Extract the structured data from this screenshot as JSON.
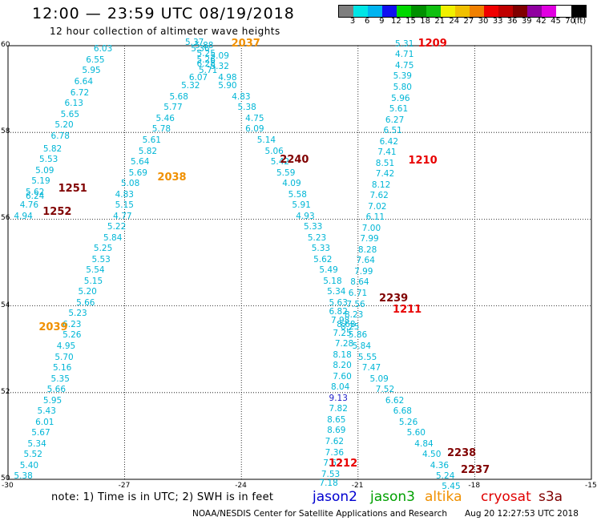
{
  "header": {
    "title": "12:00 — 23:59 UTC 08/19/2018",
    "subtitle": "12 hour collection of altimeter wave heights"
  },
  "colorbar": {
    "colors": [
      "#7f7f7f",
      "#00e6e6",
      "#00b4f0",
      "#1010f0",
      "#00d800",
      "#009000",
      "#10c010",
      "#f0f000",
      "#f0c000",
      "#f08000",
      "#f00000",
      "#c00000",
      "#800000",
      "#9000a0",
      "#e000e0",
      "#ffffff",
      "#000000"
    ],
    "labels": [
      "3",
      "6",
      "9",
      "12",
      "15",
      "18",
      "21",
      "24",
      "27",
      "30",
      "33",
      "36",
      "39",
      "42",
      "45",
      "70",
      "(ft)"
    ]
  },
  "axes": {
    "lat_labels": [
      "60",
      "58",
      "56",
      "54",
      "52",
      "50"
    ],
    "lon_labels": [
      "-30",
      "-27",
      "-24",
      "-21",
      "-18",
      "-15"
    ]
  },
  "chart_data": {
    "type": "scatter",
    "xlim": [
      -30,
      -15
    ],
    "ylim": [
      50,
      60
    ],
    "grid": true,
    "points": [
      [
        -27.55,
        59.9,
        "6.03"
      ],
      [
        -27.75,
        59.65,
        "6.55"
      ],
      [
        -27.85,
        59.4,
        "5.95"
      ],
      [
        -28.05,
        59.15,
        "6.64"
      ],
      [
        -28.15,
        58.9,
        "6.72"
      ],
      [
        -28.3,
        58.65,
        "6.13"
      ],
      [
        -28.4,
        58.4,
        "5.65"
      ],
      [
        -28.55,
        58.15,
        "5.20"
      ],
      [
        -28.65,
        57.9,
        "6.78"
      ],
      [
        -28.85,
        57.6,
        "5.82"
      ],
      [
        -28.95,
        57.35,
        "5.53"
      ],
      [
        -29.05,
        57.1,
        "5.09"
      ],
      [
        -29.15,
        56.85,
        "5.19"
      ],
      [
        -29.3,
        56.6,
        "5.62"
      ],
      [
        -29.3,
        56.5,
        "6.24"
      ],
      [
        -29.45,
        56.3,
        "4.76"
      ],
      [
        -29.6,
        56.05,
        "4.94"
      ],
      [
        -25.2,
        60.05,
        "5.37"
      ],
      [
        -24.95,
        59.98,
        "5.88"
      ],
      [
        -25.05,
        59.9,
        "5.36"
      ],
      [
        -24.9,
        59.8,
        "5.25"
      ],
      [
        -24.9,
        59.65,
        "5.26"
      ],
      [
        -24.9,
        59.55,
        "6.28"
      ],
      [
        -24.85,
        59.4,
        "5.71"
      ],
      [
        -25.1,
        59.25,
        "6.07"
      ],
      [
        -25.3,
        59.05,
        "5.32"
      ],
      [
        -25.6,
        58.8,
        "5.68"
      ],
      [
        -25.75,
        58.55,
        "5.77"
      ],
      [
        -25.95,
        58.3,
        "5.46"
      ],
      [
        -26.05,
        58.05,
        "5.78"
      ],
      [
        -26.3,
        57.8,
        "5.61"
      ],
      [
        -26.4,
        57.55,
        "5.82"
      ],
      [
        -26.6,
        57.3,
        "5.64"
      ],
      [
        -26.65,
        57.05,
        "5.69"
      ],
      [
        -26.85,
        56.8,
        "5.08"
      ],
      [
        -27.0,
        56.55,
        "4.83"
      ],
      [
        -27.0,
        56.3,
        "5.15"
      ],
      [
        -27.05,
        56.05,
        "4.77"
      ],
      [
        -27.2,
        55.8,
        "5.22"
      ],
      [
        -27.3,
        55.55,
        "5.84"
      ],
      [
        -27.55,
        55.3,
        "5.25"
      ],
      [
        -27.6,
        55.05,
        "5.53"
      ],
      [
        -27.75,
        54.8,
        "5.54"
      ],
      [
        -27.8,
        54.55,
        "5.15"
      ],
      [
        -27.95,
        54.3,
        "5.20"
      ],
      [
        -28.0,
        54.05,
        "5.66"
      ],
      [
        -28.2,
        53.8,
        "5.23"
      ],
      [
        -28.35,
        53.55,
        "6.23"
      ],
      [
        -28.35,
        53.3,
        "5.26"
      ],
      [
        -28.5,
        53.05,
        "4.95"
      ],
      [
        -28.55,
        52.8,
        "5.70"
      ],
      [
        -28.6,
        52.55,
        "5.16"
      ],
      [
        -28.65,
        52.3,
        "5.35"
      ],
      [
        -28.75,
        52.05,
        "5.66"
      ],
      [
        -28.85,
        51.8,
        "5.95"
      ],
      [
        -29.0,
        51.55,
        "5.43"
      ],
      [
        -29.05,
        51.3,
        "6.01"
      ],
      [
        -29.15,
        51.05,
        "5.67"
      ],
      [
        -29.25,
        50.8,
        "5.34"
      ],
      [
        -29.35,
        50.55,
        "5.52"
      ],
      [
        -29.45,
        50.3,
        "5.40"
      ],
      [
        -29.6,
        50.05,
        "5.38"
      ],
      [
        -24.55,
        59.75,
        "5.09"
      ],
      [
        -24.55,
        59.5,
        "5.32"
      ],
      [
        -24.35,
        59.25,
        "4.98"
      ],
      [
        -24.35,
        59.05,
        "5.90"
      ],
      [
        -24.0,
        58.8,
        "4.83"
      ],
      [
        -23.85,
        58.55,
        "5.38"
      ],
      [
        -23.65,
        58.3,
        "4.75"
      ],
      [
        -23.65,
        58.05,
        "6.09"
      ],
      [
        -23.35,
        57.8,
        "5.14"
      ],
      [
        -23.15,
        57.55,
        "5.06"
      ],
      [
        -23.0,
        57.3,
        "5.42"
      ],
      [
        -22.85,
        57.05,
        "5.59"
      ],
      [
        -22.7,
        56.8,
        "4.09"
      ],
      [
        -22.55,
        56.55,
        "5.58"
      ],
      [
        -22.45,
        56.3,
        "5.91"
      ],
      [
        -22.35,
        56.05,
        "4.93"
      ],
      [
        -22.15,
        55.8,
        "5.33"
      ],
      [
        -22.05,
        55.55,
        "5.23"
      ],
      [
        -21.95,
        55.3,
        "5.33"
      ],
      [
        -21.9,
        55.05,
        "5.62"
      ],
      [
        -21.75,
        54.8,
        "5.49"
      ],
      [
        -21.65,
        54.55,
        "5.18"
      ],
      [
        -21.55,
        54.3,
        "5.34"
      ],
      [
        -21.5,
        54.05,
        "5.63"
      ],
      [
        -21.5,
        53.85,
        "6.82"
      ],
      [
        -21.45,
        53.65,
        "7.98"
      ],
      [
        -21.3,
        53.55,
        "8.68"
      ],
      [
        -21.4,
        53.35,
        "7.25"
      ],
      [
        -21.35,
        53.1,
        "7.28"
      ],
      [
        -21.4,
        52.85,
        "8.18"
      ],
      [
        -21.4,
        52.6,
        "8.20"
      ],
      [
        -21.4,
        52.35,
        "7.60"
      ],
      [
        -21.45,
        52.1,
        "8.04"
      ],
      [
        -21.5,
        51.85,
        "9.13"
      ],
      [
        -21.5,
        51.6,
        "7.82"
      ],
      [
        -21.55,
        51.35,
        "8.65"
      ],
      [
        -21.55,
        51.1,
        "8.69"
      ],
      [
        -21.6,
        50.85,
        "7.62"
      ],
      [
        -21.6,
        50.6,
        "7.36"
      ],
      [
        -21.65,
        50.35,
        "7.62"
      ],
      [
        -21.7,
        50.1,
        "7.53"
      ],
      [
        -21.75,
        49.88,
        "7.18"
      ],
      [
        -19.8,
        60.02,
        "5.31"
      ],
      [
        -19.8,
        59.77,
        "4.71"
      ],
      [
        -19.8,
        59.52,
        "4.75"
      ],
      [
        -19.85,
        59.27,
        "5.39"
      ],
      [
        -19.85,
        59.02,
        "5.80"
      ],
      [
        -19.9,
        58.77,
        "5.96"
      ],
      [
        -19.95,
        58.52,
        "5.61"
      ],
      [
        -20.05,
        58.27,
        "6.27"
      ],
      [
        -20.1,
        58.02,
        "6.51"
      ],
      [
        -20.2,
        57.77,
        "6.42"
      ],
      [
        -20.25,
        57.52,
        "7.41"
      ],
      [
        -20.3,
        57.27,
        "8.51"
      ],
      [
        -20.3,
        57.02,
        "7.42"
      ],
      [
        -20.4,
        56.77,
        "8.12"
      ],
      [
        -20.45,
        56.52,
        "7.62"
      ],
      [
        -20.5,
        56.27,
        "7.02"
      ],
      [
        -20.55,
        56.02,
        "6.11"
      ],
      [
        -20.65,
        55.77,
        "7.00"
      ],
      [
        -20.7,
        55.52,
        "7.99"
      ],
      [
        -20.75,
        55.27,
        "8.28"
      ],
      [
        -20.8,
        55.02,
        "7.64"
      ],
      [
        -20.85,
        54.77,
        "7.99"
      ],
      [
        -20.95,
        54.52,
        "8.64"
      ],
      [
        -21.0,
        54.27,
        "6.71"
      ],
      [
        -21.05,
        54.02,
        "7.56"
      ],
      [
        -21.1,
        53.77,
        "8.23"
      ],
      [
        -21.2,
        53.5,
        "8.25"
      ],
      [
        -21.0,
        53.3,
        "5.86"
      ],
      [
        -20.9,
        53.05,
        "5.84"
      ],
      [
        -20.75,
        52.8,
        "5.55"
      ],
      [
        -20.65,
        52.55,
        "7.47"
      ],
      [
        -20.45,
        52.3,
        "5.09"
      ],
      [
        -20.3,
        52.05,
        "7.52"
      ],
      [
        -20.05,
        51.8,
        "6.62"
      ],
      [
        -19.85,
        51.55,
        "6.68"
      ],
      [
        -19.7,
        51.3,
        "5.26"
      ],
      [
        -19.5,
        51.05,
        "5.60"
      ],
      [
        -19.3,
        50.8,
        "4.84"
      ],
      [
        -19.1,
        50.55,
        "4.50"
      ],
      [
        -18.9,
        50.3,
        "4.36"
      ],
      [
        -18.75,
        50.05,
        "5.24"
      ],
      [
        -18.6,
        49.82,
        "5.45"
      ]
    ],
    "labels": [
      {
        "lon": -23.95,
        "lat": 60.03,
        "text": "2037",
        "color": "#f09000"
      },
      {
        "lon": -19.15,
        "lat": 60.03,
        "text": "1209",
        "color": "#e80000"
      },
      {
        "lon": -28.4,
        "lat": 56.7,
        "text": "1251",
        "color": "#800000"
      },
      {
        "lon": -28.8,
        "lat": 56.15,
        "text": "1252",
        "color": "#800000"
      },
      {
        "lon": -25.85,
        "lat": 56.95,
        "text": "2038",
        "color": "#f09000"
      },
      {
        "lon": -22.7,
        "lat": 57.35,
        "text": "2240",
        "color": "#800000"
      },
      {
        "lon": -19.4,
        "lat": 57.33,
        "text": "1210",
        "color": "#e80000"
      },
      {
        "lon": -20.15,
        "lat": 54.15,
        "text": "2239",
        "color": "#800000"
      },
      {
        "lon": -19.8,
        "lat": 53.9,
        "text": "1211",
        "color": "#e80000"
      },
      {
        "lon": -28.9,
        "lat": 53.5,
        "text": "2039",
        "color": "#f09000"
      },
      {
        "lon": -18.4,
        "lat": 50.6,
        "text": "2238",
        "color": "#800000"
      },
      {
        "lon": -21.45,
        "lat": 50.35,
        "text": "1212",
        "color": "#e80000"
      },
      {
        "lon": -18.05,
        "lat": 50.2,
        "text": "2237",
        "color": "#800000"
      }
    ]
  },
  "footer": {
    "note": "note: 1) Time is in UTC; 2) SWH is in feet",
    "legend": [
      {
        "label": "jason2",
        "color": "#0000d0",
        "left": 390
      },
      {
        "label": "jason3",
        "color": "#00a000",
        "left": 462
      },
      {
        "label": "altika",
        "color": "#f09000",
        "left": 530
      },
      {
        "label": "cryosat",
        "color": "#e00000",
        "left": 600
      },
      {
        "label": "s3a",
        "color": "#800000",
        "left": 672
      }
    ],
    "credit": "NOAA/NESDIS Center for Satellite Applications and Research",
    "timestamp": "Aug 20 12:27:53 UTC 2018"
  }
}
